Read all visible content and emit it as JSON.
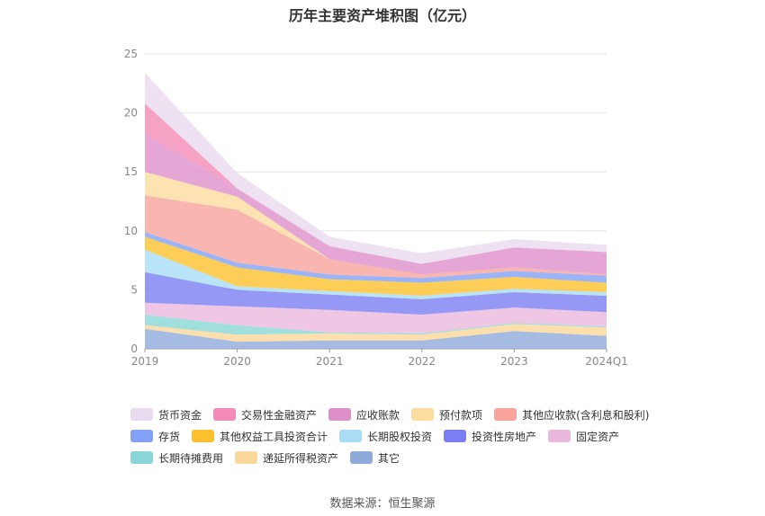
{
  "title": "历年主要资产堆积图（亿元）",
  "source": "数据来源：恒生聚源",
  "chart_data": {
    "type": "area",
    "stacked": true,
    "title": "历年主要资产堆积图（亿元）",
    "categories": [
      "2019",
      "2020",
      "2021",
      "2022",
      "2023",
      "2024Q1"
    ],
    "ylim": [
      0,
      25
    ],
    "yticks": [
      0,
      5,
      10,
      15,
      20,
      25
    ],
    "grid": true,
    "legend_position": "bottom",
    "series": [
      {
        "name": "其它",
        "color": "#8eaadb",
        "values": [
          1.7,
          0.6,
          0.7,
          0.7,
          1.5,
          1.1
        ]
      },
      {
        "name": "递延所得税资产",
        "color": "#fcd79a",
        "values": [
          0.3,
          0.6,
          0.6,
          0.5,
          0.6,
          0.7
        ]
      },
      {
        "name": "长期待摊费用",
        "color": "#8ad6d6",
        "values": [
          0.9,
          0.8,
          0.1,
          0.1,
          0.1,
          0.1
        ]
      },
      {
        "name": "固定资产",
        "color": "#ebb8dd",
        "values": [
          1.0,
          1.6,
          1.9,
          1.6,
          1.3,
          1.2
        ]
      },
      {
        "name": "投资性房地产",
        "color": "#7b7ef2",
        "values": [
          2.6,
          1.4,
          1.3,
          1.3,
          1.3,
          1.4
        ]
      },
      {
        "name": "长期股权投资",
        "color": "#a8ddf5",
        "values": [
          1.9,
          0.3,
          0.3,
          0.3,
          0.3,
          0.3
        ]
      },
      {
        "name": "其他权益工具投资合计",
        "color": "#fbc02d",
        "values": [
          1.1,
          1.6,
          1.0,
          1.1,
          1.0,
          0.8
        ]
      },
      {
        "name": "存货",
        "color": "#82a0f5",
        "values": [
          0.4,
          0.4,
          0.4,
          0.4,
          0.5,
          0.6
        ]
      },
      {
        "name": "其他应收款(含利息和股利)",
        "color": "#f8a39b",
        "values": [
          3.1,
          4.5,
          1.3,
          0.3,
          0.3,
          0.1
        ]
      },
      {
        "name": "预付款项",
        "color": "#fcdc9f",
        "values": [
          2.0,
          1.1,
          0.0,
          0.0,
          0.0,
          0.0
        ]
      },
      {
        "name": "应收账款",
        "color": "#de8fca",
        "values": [
          3.2,
          0.7,
          1.1,
          0.9,
          1.7,
          1.9
        ]
      },
      {
        "name": "交易性金融资产",
        "color": "#f48bb6",
        "values": [
          2.6,
          0.0,
          0.0,
          0.0,
          0.0,
          0.0
        ]
      },
      {
        "name": "货币资金",
        "color": "#e8daef",
        "values": [
          2.6,
          1.3,
          0.8,
          0.9,
          0.7,
          0.6
        ]
      }
    ]
  },
  "legend": [
    [
      "货币资金",
      "交易性金融资产",
      "应收账款",
      "预付款项",
      "其他应收款(含利息和股利)"
    ],
    [
      "存货",
      "其他权益工具投资合计",
      "长期股权投资",
      "投资性房地产",
      "固定资产"
    ],
    [
      "长期待摊费用",
      "递延所得税资产",
      "其它"
    ]
  ],
  "legend_colors": {
    "货币资金": "#e8daef",
    "交易性金融资产": "#f48bb6",
    "应收账款": "#de8fca",
    "预付款项": "#fcdc9f",
    "其他应收款(含利息和股利)": "#f8a39b",
    "存货": "#82a0f5",
    "其他权益工具投资合计": "#fbc02d",
    "长期股权投资": "#a8ddf5",
    "投资性房地产": "#7b7ef2",
    "固定资产": "#ebb8dd",
    "长期待摊费用": "#8ad6d6",
    "递延所得税资产": "#fcd79a",
    "其它": "#8eaadb"
  }
}
